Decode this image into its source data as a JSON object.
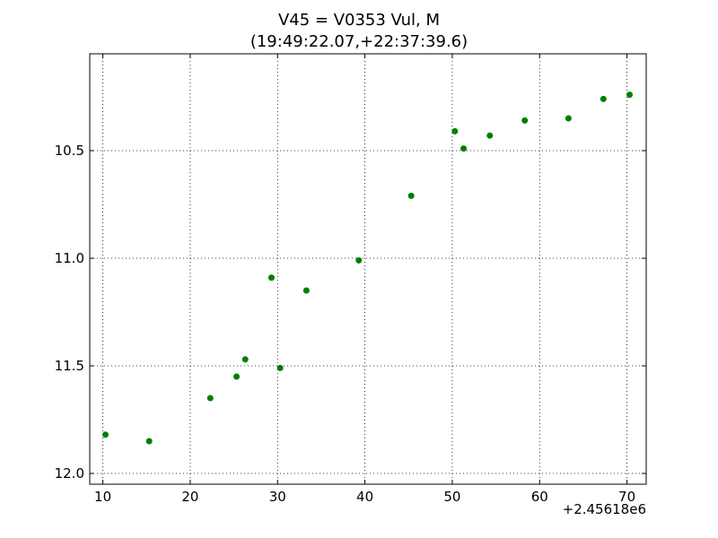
{
  "chart_data": {
    "type": "scatter",
    "title": "V45 = V0353 Vul, M",
    "subtitle": "(19:49:22.07,+22:37:39.6)",
    "xlabel": "",
    "ylabel": "",
    "x_offset_label": "+2.45618e6",
    "xlim": [
      8.5,
      72.2
    ],
    "ylim": [
      12.05,
      10.05
    ],
    "y_inverted": true,
    "grid": true,
    "grid_style": "dotted",
    "marker_color": "#007f00",
    "x_ticks": [
      10,
      20,
      30,
      40,
      50,
      60,
      70
    ],
    "y_ticks": [
      10.5,
      11.0,
      11.5,
      12.0
    ],
    "x_tick_labels": [
      "10",
      "20",
      "30",
      "40",
      "50",
      "60",
      "70"
    ],
    "y_tick_labels": [
      "10.5",
      "11.0",
      "11.5",
      "12.0"
    ],
    "points": [
      {
        "x": 10.3,
        "y": 11.82
      },
      {
        "x": 15.3,
        "y": 11.85
      },
      {
        "x": 22.3,
        "y": 11.65
      },
      {
        "x": 25.3,
        "y": 11.55
      },
      {
        "x": 26.3,
        "y": 11.47
      },
      {
        "x": 29.3,
        "y": 11.09
      },
      {
        "x": 30.3,
        "y": 11.51
      },
      {
        "x": 33.3,
        "y": 11.15
      },
      {
        "x": 39.3,
        "y": 11.01
      },
      {
        "x": 45.3,
        "y": 10.71
      },
      {
        "x": 50.3,
        "y": 10.41
      },
      {
        "x": 51.3,
        "y": 10.49
      },
      {
        "x": 54.3,
        "y": 10.43
      },
      {
        "x": 58.3,
        "y": 10.36
      },
      {
        "x": 63.3,
        "y": 10.35
      },
      {
        "x": 67.3,
        "y": 10.26
      },
      {
        "x": 70.3,
        "y": 10.24
      }
    ]
  }
}
